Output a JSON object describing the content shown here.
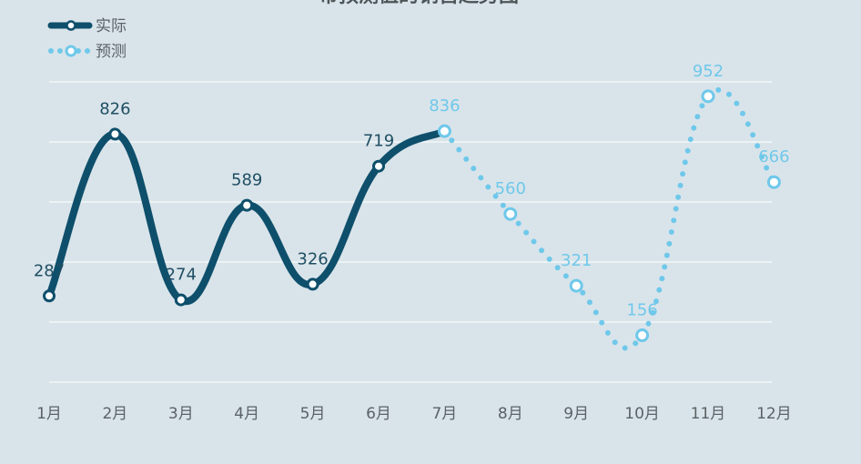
{
  "chart_data": {
    "type": "line",
    "title": "带预测值的销售趋势图",
    "categories": [
      "1月",
      "2月",
      "3月",
      "4月",
      "5月",
      "6月",
      "7月",
      "8月",
      "9月",
      "10月",
      "11月",
      "12月"
    ],
    "series": [
      {
        "name": "实际",
        "values": [
          287,
          826,
          274,
          589,
          326,
          719,
          836,
          null,
          null,
          null,
          null,
          null
        ]
      },
      {
        "name": "预测",
        "values": [
          null,
          null,
          null,
          null,
          null,
          null,
          836,
          560,
          321,
          156,
          952,
          666
        ]
      }
    ],
    "ylim": [
      0,
      1000
    ],
    "grid": true,
    "legend": "top-left",
    "colors": {
      "actual": "#0e4f6b",
      "forecast": "#6fc8ea",
      "grid": "#ffffff",
      "background": "#d9e4ea"
    }
  }
}
